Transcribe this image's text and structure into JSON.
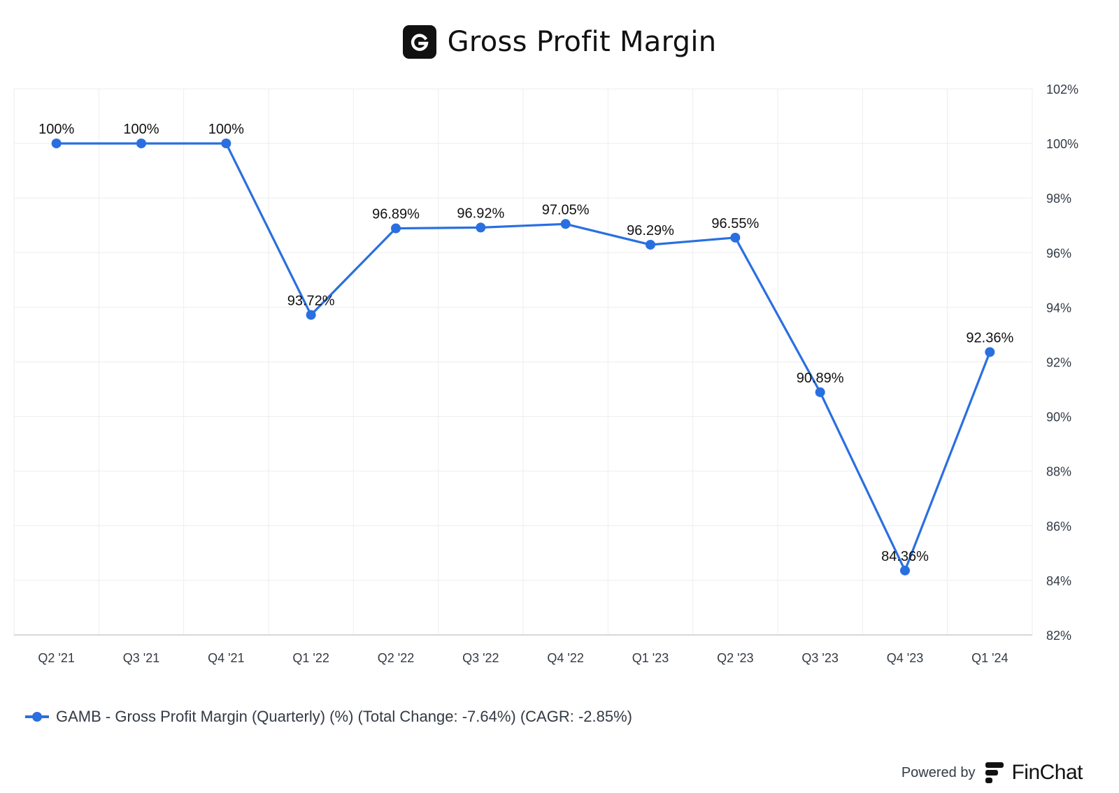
{
  "header": {
    "title": "Gross Profit Margin",
    "logo_icon": "finchat-g-logo"
  },
  "chart_data": {
    "type": "line",
    "title": "Gross Profit Margin",
    "categories": [
      "Q2 '21",
      "Q3 '21",
      "Q4 '21",
      "Q1 '22",
      "Q2 '22",
      "Q3 '22",
      "Q4 '22",
      "Q1 '23",
      "Q2 '23",
      "Q3 '23",
      "Q4 '23",
      "Q1 '24"
    ],
    "series": [
      {
        "name": "GAMB - Gross Profit Margin (Quarterly) (%) (Total Change: -7.64%) (CAGR: -2.85%)",
        "values": [
          100,
          100,
          100,
          93.72,
          96.89,
          96.92,
          97.05,
          96.29,
          96.55,
          90.89,
          84.36,
          92.36
        ],
        "data_labels": [
          "100%",
          "100%",
          "100%",
          "93.72%",
          "96.89%",
          "96.92%",
          "97.05%",
          "96.29%",
          "96.55%",
          "90.89%",
          "84.36%",
          "92.36%"
        ],
        "color": "#2a6fe0"
      }
    ],
    "yticks": [
      "82%",
      "84%",
      "86%",
      "88%",
      "90%",
      "92%",
      "94%",
      "96%",
      "98%",
      "100%",
      "102%"
    ],
    "ylim": [
      82,
      102
    ],
    "xlabel": "",
    "ylabel": "",
    "y_axis_side": "right",
    "grid": true,
    "legend_position": "bottom-left"
  },
  "legend": {
    "label": "GAMB - Gross Profit Margin (Quarterly) (%) (Total Change: -7.64%) (CAGR: -2.85%)"
  },
  "footer": {
    "powered_by": "Powered by",
    "brand": "FinChat",
    "brand_icon": "finchat-logo"
  },
  "colors": {
    "series": "#2a6fe0",
    "grid": "#eeeeee",
    "axis": "#cccccc",
    "text": "#333a45"
  }
}
